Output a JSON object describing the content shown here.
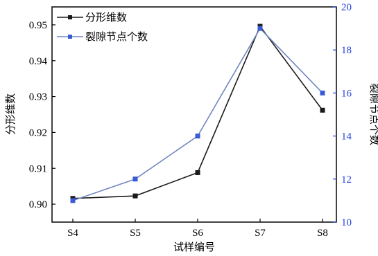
{
  "chart_data": {
    "type": "line",
    "categories": [
      "S4",
      "S5",
      "S6",
      "S7",
      "S8"
    ],
    "xlabel": "试样编号",
    "series": [
      {
        "name": "分形维数",
        "axis": "left",
        "color": "#1a1a1a",
        "values": [
          0.9016,
          0.9023,
          0.9088,
          0.9496,
          0.9262
        ]
      },
      {
        "name": "裂隙节点个数",
        "axis": "right",
        "color": "#6f86c0",
        "marker_color": "#3b5bd6",
        "values": [
          11,
          12,
          14,
          19,
          16
        ]
      }
    ],
    "y_left": {
      "label": "分形维数",
      "ylim": [
        0.895,
        0.955
      ],
      "ticks": [
        "0.90",
        "0.91",
        "0.92",
        "0.93",
        "0.94",
        "0.95"
      ]
    },
    "y_right": {
      "label": "裂隙节点个数",
      "ylim": [
        10,
        20
      ],
      "ticks": [
        "10",
        "12",
        "14",
        "16",
        "18",
        "20"
      ],
      "color": "#1f3fe0"
    },
    "legend": "top-left",
    "grid": false
  }
}
